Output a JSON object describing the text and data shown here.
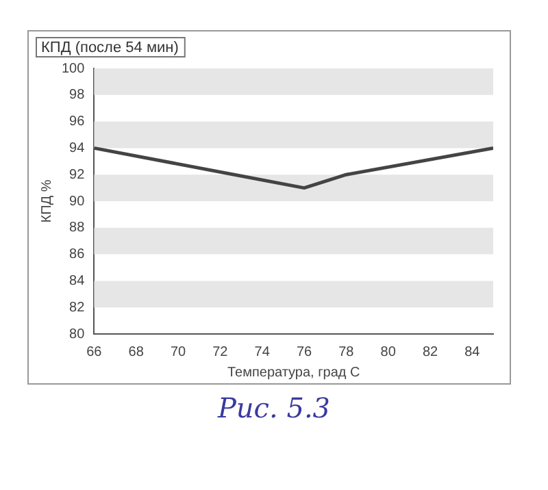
{
  "chart_data": {
    "type": "line",
    "title": "КПД (после 54 мин)",
    "xlabel": "Температура, град С",
    "ylabel": "КПД %",
    "x": [
      66,
      76,
      78,
      85
    ],
    "series": [
      {
        "color": "#444444",
        "values": [
          94,
          91,
          92,
          94
        ]
      }
    ],
    "xlim": [
      66,
      85
    ],
    "xticks": [
      66,
      68,
      70,
      72,
      74,
      76,
      78,
      80,
      82,
      84
    ],
    "ylim": [
      80,
      100
    ],
    "yticks": [
      80,
      82,
      84,
      86,
      88,
      90,
      92,
      94,
      96,
      98,
      100
    ],
    "bands": [
      {
        "axis": "y",
        "from": 82,
        "to": 84,
        "color": "#e6e6e6"
      },
      {
        "axis": "y",
        "from": 86,
        "to": 88,
        "color": "#e6e6e6"
      },
      {
        "axis": "y",
        "from": 90,
        "to": 92,
        "color": "#e6e6e6"
      },
      {
        "axis": "y",
        "from": 94,
        "to": 96,
        "color": "#e6e6e6"
      },
      {
        "axis": "y",
        "from": 98,
        "to": 100,
        "color": "#e6e6e6"
      }
    ],
    "legend": false,
    "marker": "none",
    "line_style": "solid",
    "annotations": [
      "Рис. 5.3"
    ]
  }
}
